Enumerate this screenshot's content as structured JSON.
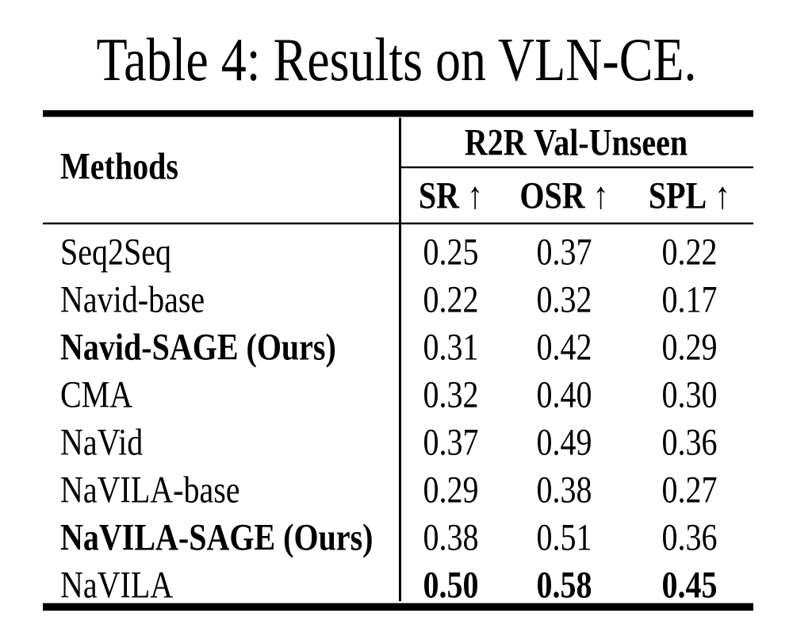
{
  "page": {
    "background": "#ffffff",
    "text_color": "#000000",
    "rule_color": "#000000"
  },
  "caption": "Table 4: Results on VLN-CE.",
  "table": {
    "corner_header": "Methods",
    "group_header": "R2R Val-Unseen",
    "columns": [
      {
        "label": "SR",
        "arrow": "↑"
      },
      {
        "label": "OSR",
        "arrow": "↑"
      },
      {
        "label": "SPL",
        "arrow": "↑"
      }
    ],
    "rows": [
      {
        "method": "Seq2Seq",
        "method_bold": false,
        "values": [
          "0.25",
          "0.37",
          "0.22"
        ],
        "values_bold": false
      },
      {
        "method": "Navid-base",
        "method_bold": false,
        "values": [
          "0.22",
          "0.32",
          "0.17"
        ],
        "values_bold": false
      },
      {
        "method": "Navid-SAGE (Ours)",
        "method_bold": true,
        "values": [
          "0.31",
          "0.42",
          "0.29"
        ],
        "values_bold": false
      },
      {
        "method": "CMA",
        "method_bold": false,
        "values": [
          "0.32",
          "0.40",
          "0.30"
        ],
        "values_bold": false
      },
      {
        "method": "NaVid",
        "method_bold": false,
        "values": [
          "0.37",
          "0.49",
          "0.36"
        ],
        "values_bold": false
      },
      {
        "method": "NaVILA-base",
        "method_bold": false,
        "values": [
          "0.29",
          "0.38",
          "0.27"
        ],
        "values_bold": false
      },
      {
        "method": "NaVILA-SAGE (Ours)",
        "method_bold": true,
        "values": [
          "0.38",
          "0.51",
          "0.36"
        ],
        "values_bold": false
      },
      {
        "method": "NaVILA",
        "method_bold": false,
        "values": [
          "0.50",
          "0.58",
          "0.45"
        ],
        "values_bold": true
      }
    ]
  }
}
